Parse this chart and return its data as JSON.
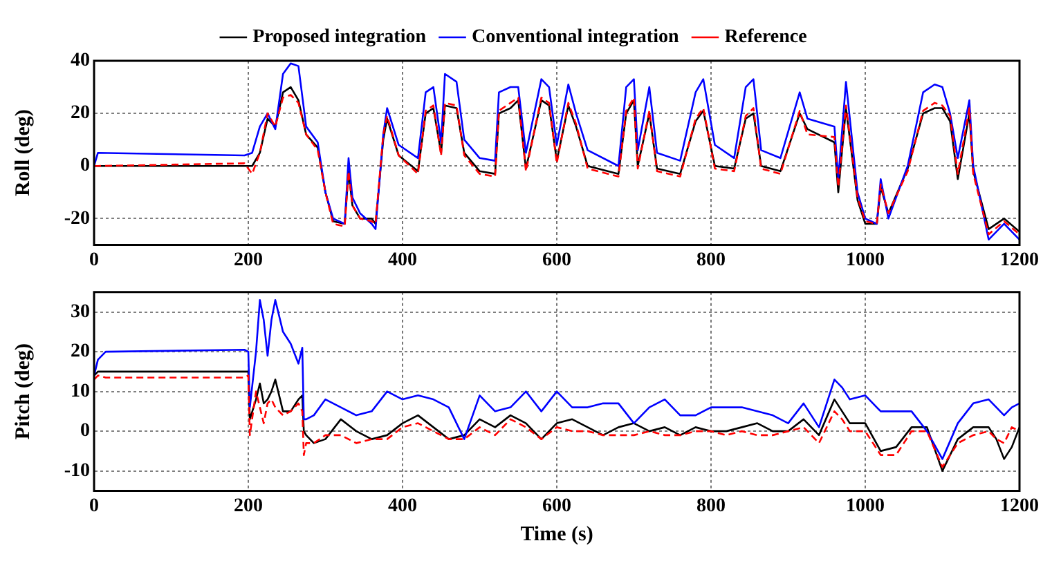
{
  "chart_data": [
    {
      "type": "line",
      "ylabel": "Roll (deg)",
      "legend": "top",
      "grid": true,
      "marker": "none",
      "xlim": [
        0,
        1200
      ],
      "xticks": [
        0,
        200,
        400,
        600,
        800,
        1000,
        1200
      ],
      "ylim": [
        -30,
        40
      ],
      "yticks": [
        -20,
        0,
        20,
        40
      ],
      "x": [
        0,
        5,
        195,
        205,
        215,
        225,
        235,
        245,
        255,
        265,
        275,
        290,
        300,
        310,
        325,
        330,
        335,
        345,
        360,
        365,
        375,
        380,
        395,
        420,
        430,
        440,
        450,
        455,
        470,
        480,
        500,
        520,
        525,
        540,
        550,
        560,
        580,
        590,
        600,
        615,
        625,
        640,
        680,
        690,
        700,
        705,
        720,
        730,
        760,
        780,
        790,
        805,
        830,
        845,
        855,
        865,
        890,
        915,
        925,
        960,
        965,
        975,
        990,
        1000,
        1015,
        1020,
        1030,
        1055,
        1075,
        1090,
        1100,
        1110,
        1120,
        1135,
        1140,
        1160,
        1180,
        1200
      ],
      "series": [
        {
          "name": "Proposed integration",
          "color": "#000000",
          "line_style": "solid",
          "values": [
            0,
            0,
            0,
            0,
            5,
            18,
            15,
            28,
            30,
            25,
            12,
            7,
            -10,
            -21,
            -22,
            -2,
            -15,
            -20,
            -20,
            -22,
            10,
            18,
            4,
            -2,
            20,
            22,
            5,
            23,
            22,
            5,
            -2,
            -3,
            20,
            22,
            25,
            -1,
            25,
            23,
            2,
            23,
            15,
            0,
            -3,
            20,
            25,
            0,
            20,
            -1,
            -3,
            17,
            21,
            0,
            -1,
            18,
            20,
            0,
            -2,
            20,
            14,
            9,
            -10,
            22,
            -13,
            -22,
            -22,
            -8,
            -18,
            -1,
            20,
            22,
            22,
            17,
            -5,
            20,
            -2,
            -24,
            -20,
            -25
          ]
        },
        {
          "name": "Conventional integration",
          "color": "#0000ff",
          "line_style": "solid",
          "values": [
            0,
            5,
            4,
            5,
            15,
            20,
            14,
            35,
            39,
            38,
            15,
            9,
            -10,
            -20,
            -22,
            3,
            -12,
            -18,
            -22,
            -24,
            12,
            22,
            8,
            3,
            28,
            30,
            9,
            35,
            32,
            10,
            3,
            2,
            28,
            30,
            30,
            5,
            33,
            30,
            8,
            31,
            20,
            6,
            0,
            30,
            33,
            6,
            30,
            5,
            2,
            28,
            33,
            8,
            3,
            30,
            33,
            6,
            3,
            28,
            18,
            15,
            -5,
            32,
            -10,
            -20,
            -22,
            -5,
            -20,
            0,
            28,
            31,
            30,
            20,
            3,
            25,
            0,
            -28,
            -22,
            -28
          ]
        },
        {
          "name": "Reference",
          "color": "#ff0000",
          "line_style": "dashed",
          "values": [
            0,
            0,
            1,
            -3,
            5,
            20,
            15,
            26,
            27,
            24,
            12,
            6,
            -10,
            -22,
            -23,
            -2,
            -15,
            -20,
            -21,
            -22,
            12,
            19,
            4,
            -3,
            21,
            23,
            4,
            24,
            23,
            4,
            -3,
            -4,
            21,
            24,
            26,
            -2,
            26,
            24,
            1,
            24,
            16,
            -1,
            -4,
            21,
            26,
            -1,
            21,
            -2,
            -4,
            18,
            22,
            -1,
            -2,
            19,
            22,
            -1,
            -3,
            21,
            12,
            11,
            -8,
            23,
            -12,
            -21,
            -22,
            -7,
            -18,
            -2,
            21,
            24,
            23,
            19,
            -3,
            22,
            -3,
            -26,
            -21,
            -26
          ]
        }
      ]
    },
    {
      "type": "line",
      "xlabel": "Time (s)",
      "ylabel": "Pitch (deg)",
      "grid": true,
      "marker": "none",
      "xlim": [
        0,
        1200
      ],
      "xticks": [
        0,
        200,
        400,
        600,
        800,
        1000,
        1200
      ],
      "ylim": [
        -15,
        35
      ],
      "yticks": [
        -10,
        0,
        10,
        20,
        30
      ],
      "x": [
        0,
        5,
        15,
        195,
        200,
        202,
        210,
        215,
        220,
        225,
        230,
        235,
        245,
        255,
        265,
        270,
        272,
        275,
        285,
        300,
        320,
        340,
        360,
        380,
        400,
        420,
        440,
        460,
        480,
        500,
        520,
        540,
        560,
        580,
        600,
        620,
        640,
        660,
        680,
        700,
        720,
        740,
        760,
        780,
        800,
        820,
        840,
        860,
        880,
        900,
        920,
        940,
        960,
        970,
        980,
        1000,
        1020,
        1040,
        1060,
        1080,
        1100,
        1120,
        1140,
        1160,
        1170,
        1180,
        1190,
        1200
      ],
      "series": [
        {
          "color": "#000000",
          "line_style": "solid",
          "values": [
            14,
            15,
            15,
            15,
            15,
            3,
            8,
            12,
            7,
            8,
            10,
            13,
            5,
            5,
            8,
            9,
            0,
            -1,
            -3,
            -2,
            3,
            0,
            -2,
            -1,
            2,
            4,
            1,
            -2,
            -1,
            3,
            1,
            4,
            2,
            -2,
            2,
            3,
            1,
            -1,
            1,
            2,
            0,
            1,
            -1,
            1,
            0,
            0,
            1,
            2,
            0,
            0,
            3,
            -1,
            8,
            5,
            2,
            2,
            -5,
            -4,
            1,
            1,
            -10,
            -2,
            1,
            1,
            -2,
            -7,
            -4,
            1
          ]
        },
        {
          "color": "#0000ff",
          "line_style": "solid",
          "values": [
            14,
            18,
            20,
            20.5,
            20,
            6,
            20,
            33,
            28,
            19,
            28,
            33,
            25,
            22,
            17,
            21,
            3,
            3,
            4,
            8,
            6,
            4,
            5,
            10,
            8,
            9,
            8,
            6,
            -2,
            9,
            5,
            6,
            10,
            5,
            10,
            6,
            6,
            7,
            7,
            2,
            6,
            8,
            4,
            4,
            6,
            6,
            6,
            5,
            4,
            2,
            7,
            1,
            13,
            11,
            8,
            9,
            5,
            5,
            5,
            0,
            -7,
            2,
            7,
            8,
            6,
            4,
            6,
            7
          ]
        },
        {
          "color": "#ff0000",
          "line_style": "dashed",
          "values": [
            13,
            14,
            13.5,
            13.5,
            14,
            -1,
            10,
            6,
            2,
            7,
            8,
            6,
            4,
            5,
            7,
            5,
            -6,
            -3,
            -3,
            -1,
            -1,
            -3,
            -2,
            -2,
            1,
            2,
            0,
            -2,
            -2,
            1,
            -1,
            3,
            1,
            -2,
            1,
            0,
            0,
            -1,
            -1,
            -1,
            0,
            -1,
            -1,
            0,
            0,
            -1,
            0,
            -1,
            -1,
            0,
            1,
            -3,
            5,
            3,
            0,
            0,
            -6,
            -6,
            0,
            0,
            -9,
            -3,
            -1,
            0,
            -2,
            -3,
            1,
            0
          ]
        }
      ]
    }
  ]
}
